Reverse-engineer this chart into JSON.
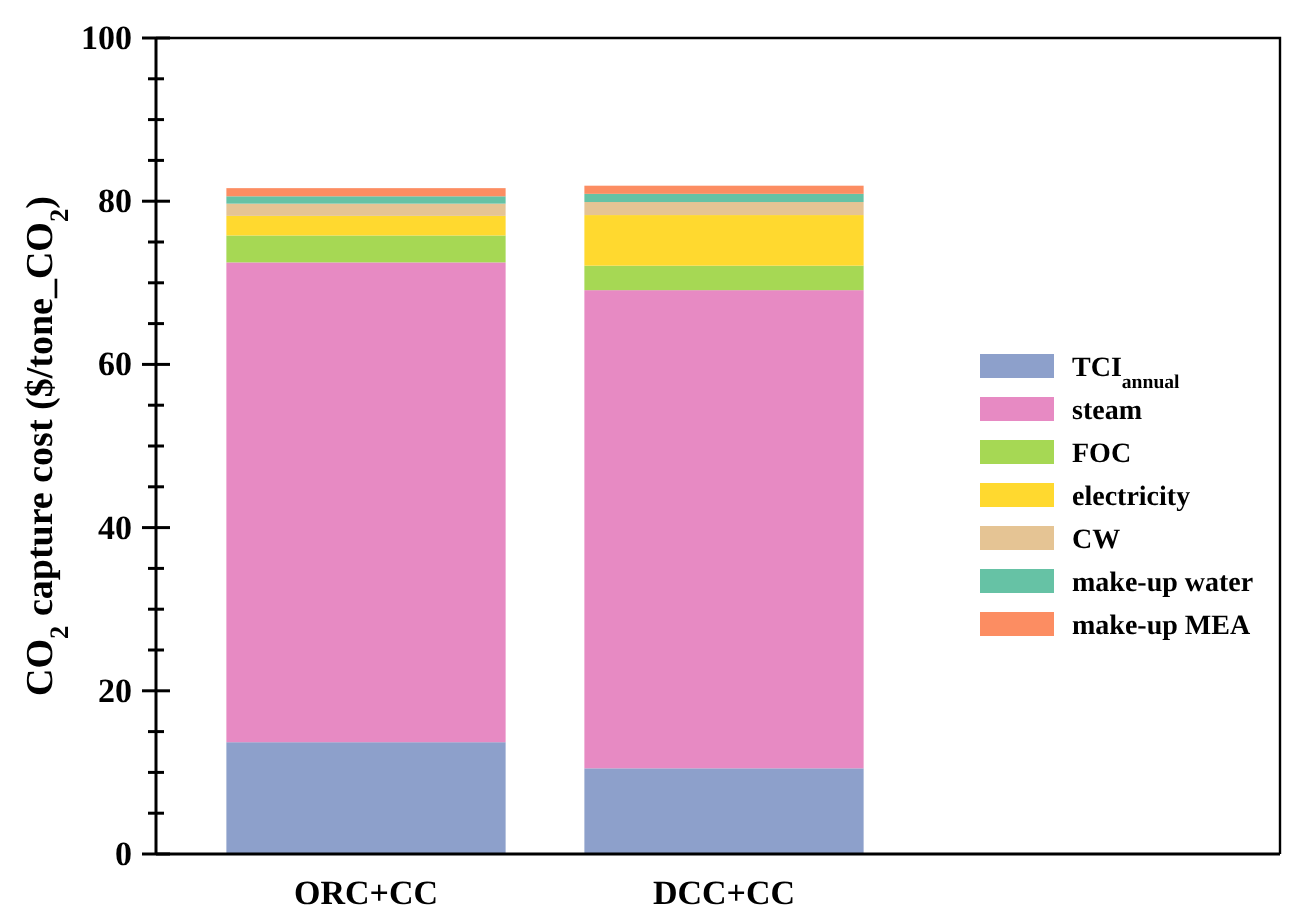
{
  "chart_data": {
    "type": "bar",
    "stacked": true,
    "categories": [
      "ORC+CC",
      "DCC+CC"
    ],
    "ylabel": "CO$_{2}$ capture cost ($/tone_CO$_{2}$)",
    "ylim": [
      0,
      100
    ],
    "yticks": [
      0,
      {
        "value": 5,
        "label": null
      },
      {
        "value": 10,
        "label": null
      },
      {
        "value": 15,
        "label": null
      },
      20,
      {
        "value": 25,
        "label": null
      },
      {
        "value": 30,
        "label": null
      },
      {
        "value": 35,
        "label": null
      },
      40,
      {
        "value": 45,
        "label": null
      },
      {
        "value": 50,
        "label": null
      },
      {
        "value": 55,
        "label": null
      },
      60,
      {
        "value": 65,
        "label": null
      },
      {
        "value": 70,
        "label": null
      },
      {
        "value": 75,
        "label": null
      },
      80,
      {
        "value": 85,
        "label": null
      },
      {
        "value": 90,
        "label": null
      },
      {
        "value": 95,
        "label": null
      },
      100
    ],
    "legend": "right",
    "grid": false,
    "series": [
      {
        "name": "TCI$_{annual}$",
        "color": "#8da0cb",
        "values": [
          13.7,
          10.5
        ]
      },
      {
        "name": "steam",
        "color": "#e78ac3",
        "values": [
          58.8,
          58.6
        ]
      },
      {
        "name": "FOC",
        "color": "#a6d854",
        "values": [
          3.3,
          3.0
        ]
      },
      {
        "name": "electricity",
        "color": "#ffd92f",
        "values": [
          2.4,
          6.2
        ]
      },
      {
        "name": "CW",
        "color": "#e5c494",
        "values": [
          1.5,
          1.6
        ]
      },
      {
        "name": "make-up water",
        "color": "#66c2a5",
        "values": [
          0.9,
          1.0
        ]
      },
      {
        "name": "make-up MEA",
        "color": "#fc8d62",
        "values": [
          1.0,
          1.0
        ]
      }
    ]
  }
}
